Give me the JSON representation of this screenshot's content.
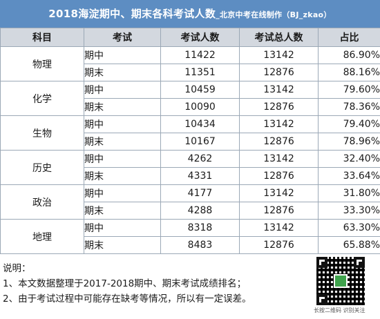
{
  "title": {
    "main": "2018海淀期中、期末各科考试人数",
    "sub": "_北京中考在线制作（BJ_zkao）"
  },
  "table": {
    "headers": [
      "科目",
      "考试",
      "考试人数",
      "考试总人数",
      "占比"
    ],
    "groups": [
      {
        "subject": "物理",
        "rows": [
          {
            "exam": "期中",
            "count": "11422",
            "total": "13142",
            "ratio": "86.90%"
          },
          {
            "exam": "期末",
            "count": "11351",
            "total": "12876",
            "ratio": "88.16%"
          }
        ]
      },
      {
        "subject": "化学",
        "rows": [
          {
            "exam": "期中",
            "count": "10459",
            "total": "13142",
            "ratio": "79.60%"
          },
          {
            "exam": "期末",
            "count": "10090",
            "total": "12876",
            "ratio": "78.36%"
          }
        ]
      },
      {
        "subject": "生物",
        "rows": [
          {
            "exam": "期中",
            "count": "10434",
            "total": "13142",
            "ratio": "79.40%"
          },
          {
            "exam": "期末",
            "count": "10167",
            "total": "12876",
            "ratio": "78.96%"
          }
        ]
      },
      {
        "subject": "历史",
        "rows": [
          {
            "exam": "期中",
            "count": "4262",
            "total": "13142",
            "ratio": "32.40%"
          },
          {
            "exam": "期末",
            "count": "4331",
            "total": "12876",
            "ratio": "33.64%"
          }
        ]
      },
      {
        "subject": "政治",
        "rows": [
          {
            "exam": "期中",
            "count": "4177",
            "total": "13142",
            "ratio": "31.80%"
          },
          {
            "exam": "期末",
            "count": "4288",
            "total": "12876",
            "ratio": "33.30%"
          }
        ]
      },
      {
        "subject": "地理",
        "rows": [
          {
            "exam": "期中",
            "count": "8318",
            "total": "13142",
            "ratio": "63.30%"
          },
          {
            "exam": "期末",
            "count": "8483",
            "total": "12876",
            "ratio": "65.88%"
          }
        ]
      }
    ]
  },
  "notes": {
    "heading": "说明：",
    "lines": [
      "1、本文数据整理于2017-2018期中、期末考试成绩排名；",
      "2、由于考试过程中可能存在缺考等情况，所以有一定误差。"
    ]
  },
  "qr": {
    "caption": "长按二维码 识别关注"
  },
  "colors": {
    "title_bg": "#5d8dc2",
    "header_bg": "#d3d8df",
    "border": "#9ba8b6"
  }
}
